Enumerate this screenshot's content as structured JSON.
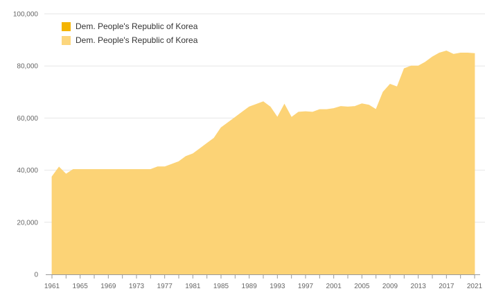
{
  "chart_data": {
    "type": "area",
    "x": [
      1961,
      1962,
      1963,
      1964,
      1965,
      1966,
      1967,
      1968,
      1969,
      1970,
      1971,
      1972,
      1973,
      1974,
      1975,
      1976,
      1977,
      1978,
      1979,
      1980,
      1981,
      1982,
      1983,
      1984,
      1985,
      1986,
      1987,
      1988,
      1989,
      1990,
      1991,
      1992,
      1993,
      1994,
      1995,
      1996,
      1997,
      1998,
      1999,
      2000,
      2001,
      2002,
      2003,
      2004,
      2005,
      2006,
      2007,
      2008,
      2009,
      2010,
      2011,
      2012,
      2013,
      2014,
      2015,
      2016,
      2017,
      2018,
      2019,
      2020,
      2021
    ],
    "series": [
      {
        "name": "Dem. People's Republic of Korea",
        "color": "#fcd376",
        "values": [
          37500,
          41200,
          38500,
          40300,
          40300,
          40300,
          40300,
          40300,
          40300,
          40300,
          40300,
          40300,
          40300,
          40300,
          40300,
          41300,
          41300,
          42300,
          43300,
          45300,
          46300,
          48300,
          50300,
          52300,
          56300,
          58300,
          60300,
          62300,
          64300,
          65300,
          66300,
          64300,
          60300,
          65300,
          60300,
          62300,
          62500,
          62300,
          63300,
          63300,
          63700,
          64500,
          64300,
          64500,
          65500,
          65000,
          63300,
          70000,
          73000,
          72000,
          79000,
          80000,
          80000,
          81500,
          83500,
          85000,
          85800,
          84500,
          85000,
          85000,
          84800
        ]
      }
    ],
    "legend": [
      {
        "label": "Dem. People's Republic of Korea",
        "color": "#f4b400"
      },
      {
        "label": "Dem. People's Republic of Korea",
        "color": "#fcd67d"
      }
    ],
    "x_ticks": [
      1961,
      1965,
      1969,
      1973,
      1977,
      1981,
      1985,
      1989,
      1993,
      1997,
      2001,
      2005,
      2009,
      2013,
      2017,
      2021
    ],
    "y_ticks": [
      0,
      20000,
      40000,
      60000,
      80000,
      100000
    ],
    "y_tick_labels": [
      "0",
      "20,000",
      "40,000",
      "60,000",
      "80,000",
      "100,000"
    ],
    "ylim": [
      0,
      100000
    ],
    "xlim": [
      1961,
      2021
    ],
    "grid": true,
    "legend_position": "top-left",
    "title": "",
    "xlabel": "",
    "ylabel": ""
  }
}
